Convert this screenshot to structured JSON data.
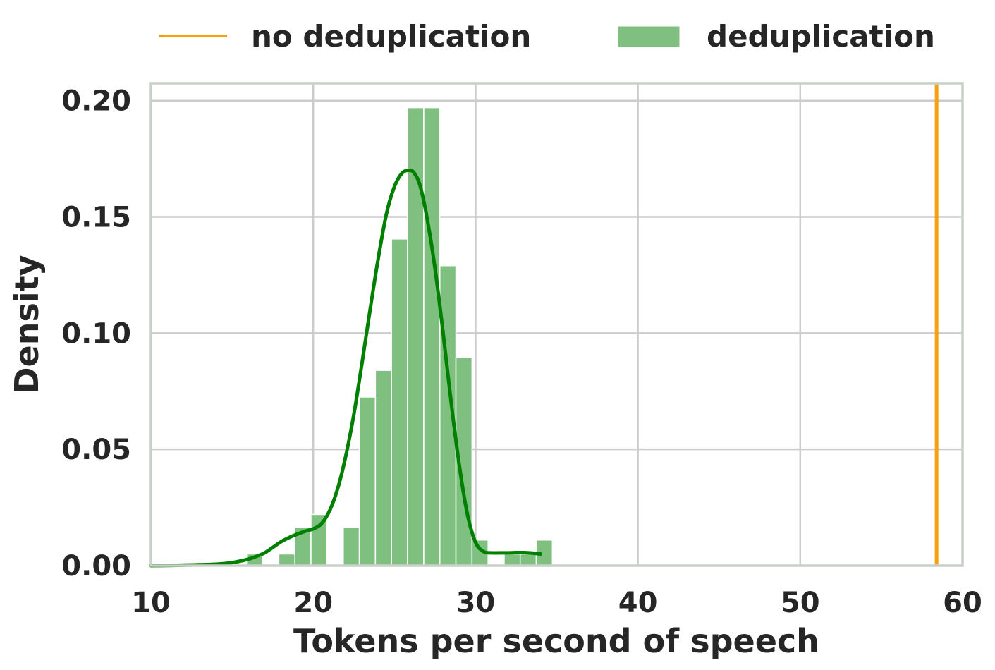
{
  "chart_data": {
    "type": "histogram",
    "xlabel": "Tokens per second of speech",
    "ylabel": "Density",
    "xlim": [
      10,
      60
    ],
    "ylim": [
      0,
      0.2075
    ],
    "xticks": [
      10,
      20,
      30,
      40,
      50,
      60
    ],
    "xtick_labels": [
      "10",
      "20",
      "30",
      "40",
      "50",
      "60"
    ],
    "yticks": [
      0.0,
      0.05,
      0.1,
      0.15,
      0.2
    ],
    "ytick_labels": [
      "0.00",
      "0.05",
      "0.10",
      "0.15",
      "0.20"
    ],
    "grid": true,
    "legend_position": "top",
    "series": [
      {
        "name": "no deduplication",
        "kind": "vline",
        "x": 58.4,
        "color": "#f5a00f"
      },
      {
        "name": "deduplication",
        "kind": "histogram",
        "color": "#7fbf7f",
        "bin_width": 0.99,
        "bins": [
          {
            "x": 15.89,
            "density": 0.005
          },
          {
            "x": 17.88,
            "density": 0.005
          },
          {
            "x": 18.87,
            "density": 0.0165
          },
          {
            "x": 19.86,
            "density": 0.022
          },
          {
            "x": 21.85,
            "density": 0.0165
          },
          {
            "x": 22.84,
            "density": 0.0725
          },
          {
            "x": 23.83,
            "density": 0.084
          },
          {
            "x": 24.82,
            "density": 0.1405
          },
          {
            "x": 25.81,
            "density": 0.197
          },
          {
            "x": 26.81,
            "density": 0.197
          },
          {
            "x": 27.8,
            "density": 0.129
          },
          {
            "x": 28.79,
            "density": 0.0895
          },
          {
            "x": 29.78,
            "density": 0.011
          },
          {
            "x": 31.76,
            "density": 0.005
          },
          {
            "x": 32.75,
            "density": 0.005
          },
          {
            "x": 33.74,
            "density": 0.011
          }
        ]
      },
      {
        "name": "deduplication-kde",
        "kind": "kde",
        "color": "#008000",
        "x": [
          10.0,
          12.0,
          14.0,
          15.0,
          16.0,
          16.5,
          17.0,
          17.5,
          18.0,
          18.5,
          19.0,
          19.5,
          20.0,
          20.5,
          21.0,
          21.5,
          22.0,
          22.5,
          23.0,
          23.5,
          24.0,
          24.5,
          25.0,
          25.5,
          26.0,
          26.3,
          26.6,
          27.0,
          27.5,
          28.0,
          28.5,
          29.0,
          29.5,
          30.0,
          30.5,
          31.0,
          31.5,
          32.0,
          32.5,
          33.0,
          33.5,
          34.0
        ],
        "y": [
          0.0,
          0.0002,
          0.0006,
          0.0013,
          0.0028,
          0.004,
          0.0055,
          0.0078,
          0.0102,
          0.012,
          0.0135,
          0.0148,
          0.0158,
          0.018,
          0.0235,
          0.033,
          0.047,
          0.065,
          0.087,
          0.11,
          0.132,
          0.151,
          0.163,
          0.169,
          0.17,
          0.168,
          0.163,
          0.15,
          0.128,
          0.1,
          0.07,
          0.043,
          0.022,
          0.01,
          0.006,
          0.0055,
          0.0055,
          0.0055,
          0.0056,
          0.0056,
          0.0054,
          0.005
        ]
      }
    ]
  }
}
